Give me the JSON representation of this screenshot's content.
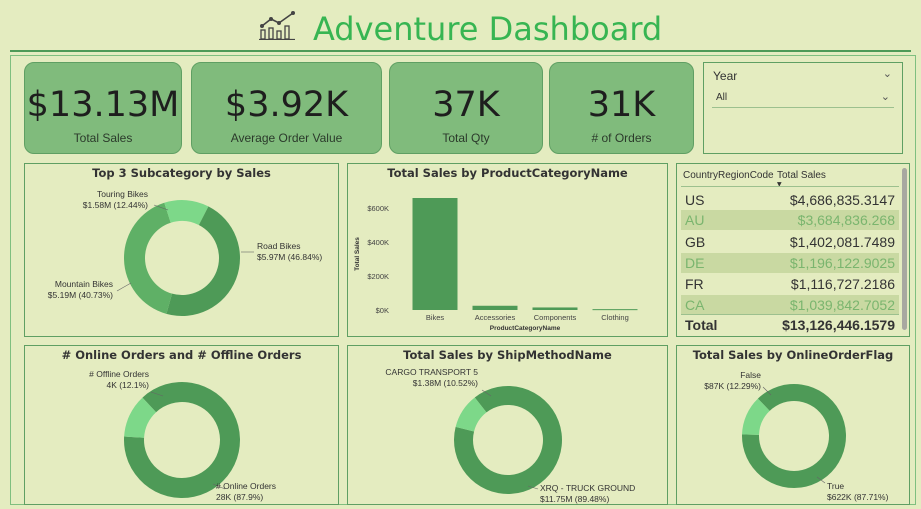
{
  "header": {
    "title": "Adventure Dashboard"
  },
  "colors": {
    "dark": "#4e9a57",
    "light": "#7dd889",
    "bar": "#4e9a57",
    "kpi_bg": "#80bb7c"
  },
  "kpis": [
    {
      "value": "$13.13M",
      "label": "Total Sales"
    },
    {
      "value": "$3.92K",
      "label": "Average Order Value"
    },
    {
      "value": "37K",
      "label": "Total Qty"
    },
    {
      "value": "31K",
      "label": "# of Orders"
    }
  ],
  "slicer": {
    "label": "Year",
    "value": "All"
  },
  "top3": {
    "title": "Top 3 Subcategory by Sales",
    "labels": {
      "touring": [
        "Touring Bikes",
        "$1.58M (12.44%)"
      ],
      "mountain": [
        "Mountain Bikes",
        "$5.19M (40.73%)"
      ],
      "road": [
        "Road Bikes",
        "$5.97M (46.84%)"
      ]
    }
  },
  "bar_panel": {
    "title": "Total Sales by ProductCategoryName"
  },
  "country_table": {
    "col1": "CountryRegionCode",
    "col2": "Total Sales",
    "rows": [
      {
        "code": "US",
        "sales": "$4,686,835.3147"
      },
      {
        "code": "AU",
        "sales": "$3,684,836.268"
      },
      {
        "code": "GB",
        "sales": "$1,402,081.7489"
      },
      {
        "code": "DE",
        "sales": "$1,196,122.9025"
      },
      {
        "code": "FR",
        "sales": "$1,116,727.2186"
      },
      {
        "code": "CA",
        "sales": "$1,039,842.7052"
      }
    ],
    "total_label": "Total",
    "total_value": "$13,126,446.1579"
  },
  "online_offline": {
    "title": "# Online Orders and # Offline Orders",
    "labels": {
      "offline": [
        "# Offline Orders",
        "4K (12.1%)"
      ],
      "online": [
        "# Online Orders",
        "28K (87.9%)"
      ]
    }
  },
  "shipmethod": {
    "title": "Total Sales by ShipMethodName",
    "labels": {
      "cargo": [
        "CARGO TRANSPORT 5",
        "$1.38M (10.52%)"
      ],
      "truck": [
        "XRQ - TRUCK GROUND",
        "$11.75M (89.48%)"
      ]
    }
  },
  "onlineflag": {
    "title": "Total Sales by OnlineOrderFlag",
    "labels": {
      "false": [
        "False",
        "$87K (12.29%)"
      ],
      "true": [
        "True",
        "$622K (87.71%)"
      ]
    }
  },
  "chart_data": [
    {
      "type": "pie",
      "title": "Top 3 Subcategory by Sales",
      "categories": [
        "Road Bikes",
        "Mountain Bikes",
        "Touring Bikes"
      ],
      "values": [
        46.84,
        40.73,
        12.44
      ]
    },
    {
      "type": "bar",
      "title": "Total Sales by ProductCategoryName",
      "categories": [
        "Bikes",
        "Accessories",
        "Components",
        "Clothing"
      ],
      "values": [
        660000,
        25000,
        15000,
        5000
      ],
      "xlabel": "ProductCategoryName",
      "ylabel": "Total Sales",
      "ylim": [
        0,
        660000
      ],
      "yticks": [
        0,
        200000,
        400000,
        600000
      ],
      "ytick_labels": [
        "$0K",
        "$200K",
        "$400K",
        "$600K"
      ]
    },
    {
      "type": "pie",
      "title": "# Online Orders and # Offline Orders",
      "categories": [
        "# Online Orders",
        "# Offline Orders"
      ],
      "values": [
        87.9,
        12.1
      ]
    },
    {
      "type": "pie",
      "title": "Total Sales by ShipMethodName",
      "categories": [
        "XRQ - TRUCK GROUND",
        "CARGO TRANSPORT 5"
      ],
      "values": [
        89.48,
        10.52
      ]
    },
    {
      "type": "pie",
      "title": "Total Sales by OnlineOrderFlag",
      "categories": [
        "True",
        "False"
      ],
      "values": [
        87.71,
        12.29
      ]
    }
  ]
}
